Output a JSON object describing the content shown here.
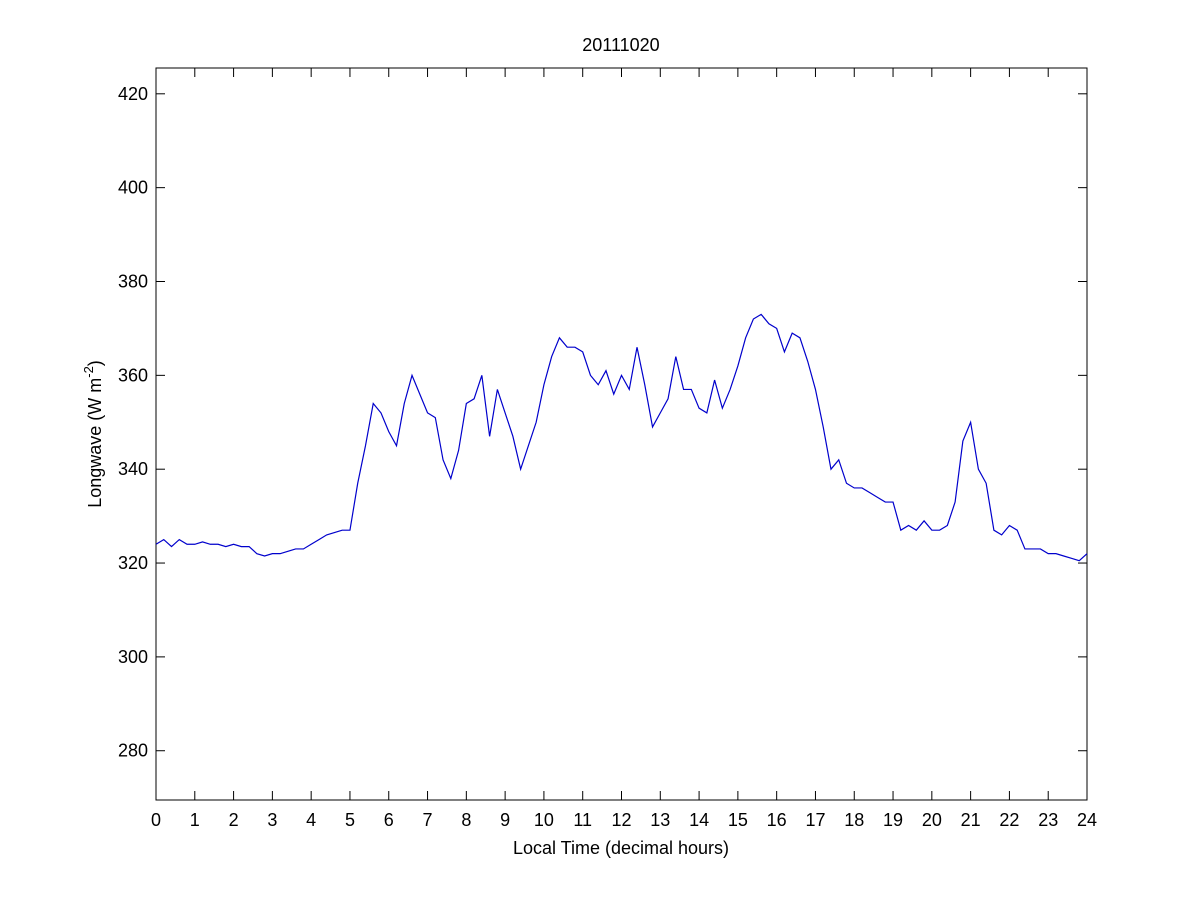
{
  "chart_data": {
    "type": "line",
    "title": "20111020",
    "xlabel": "Local Time (decimal hours)",
    "ylabel": {
      "text": "Longwave (W m",
      "sup": "-2",
      "end": ")"
    },
    "x": [
      0,
      0.2,
      0.4,
      0.6,
      0.8,
      1,
      1.2,
      1.4,
      1.6,
      1.8,
      2,
      2.2,
      2.4,
      2.6,
      2.8,
      3,
      3.2,
      3.4,
      3.6,
      3.8,
      4,
      4.2,
      4.4,
      4.6,
      4.8,
      5,
      5.2,
      5.4,
      5.6,
      5.8,
      6,
      6.2,
      6.4,
      6.6,
      6.8,
      7,
      7.2,
      7.4,
      7.6,
      7.8,
      8,
      8.2,
      8.4,
      8.6,
      8.8,
      9,
      9.2,
      9.4,
      9.6,
      9.8,
      10,
      10.2,
      10.4,
      10.6,
      10.8,
      11,
      11.2,
      11.4,
      11.6,
      11.8,
      12,
      12.2,
      12.4,
      12.6,
      12.8,
      13,
      13.2,
      13.4,
      13.6,
      13.8,
      14,
      14.2,
      14.4,
      14.6,
      14.8,
      15,
      15.2,
      15.4,
      15.6,
      15.8,
      16,
      16.2,
      16.4,
      16.6,
      16.8,
      17,
      17.2,
      17.4,
      17.6,
      17.8,
      18,
      18.2,
      18.4,
      18.6,
      18.8,
      19,
      19.2,
      19.4,
      19.6,
      19.8,
      20,
      20.2,
      20.4,
      20.6,
      20.8,
      21,
      21.2,
      21.4,
      21.6,
      21.8,
      22,
      22.2,
      22.4,
      22.6,
      22.8,
      23,
      23.2,
      23.4,
      23.6,
      23.8,
      24
    ],
    "series": [
      {
        "name": "Longwave",
        "color": "#0000cc",
        "values": [
          324,
          325,
          323.5,
          325,
          324,
          324,
          324.5,
          324,
          324,
          323.5,
          324,
          323.5,
          323.5,
          322,
          321.5,
          322,
          322,
          322.5,
          323,
          323,
          324,
          325,
          326,
          326.5,
          327,
          327,
          337,
          345,
          354,
          352,
          348,
          345,
          354,
          360,
          356,
          352,
          351,
          342,
          338,
          344,
          354,
          355,
          360,
          347,
          357,
          352,
          347,
          340,
          345,
          350,
          358,
          364,
          368,
          366,
          366,
          365,
          360,
          358,
          361,
          356,
          360,
          357,
          366,
          358,
          349,
          352,
          355,
          364,
          357,
          357,
          353,
          352,
          359,
          353,
          357,
          362,
          368,
          372,
          373,
          371,
          370,
          365,
          369,
          368,
          363,
          357,
          349,
          340,
          342,
          337,
          336,
          336,
          335,
          334,
          333,
          333,
          327,
          328,
          327,
          329,
          327,
          327,
          328,
          333,
          346,
          350,
          340,
          337,
          327,
          326,
          328,
          327,
          323,
          323,
          323,
          322,
          322,
          321.5,
          321,
          320.5,
          322
        ]
      }
    ],
    "xlim": [
      0,
      24
    ],
    "xticks": [
      0,
      1,
      2,
      3,
      4,
      5,
      6,
      7,
      8,
      9,
      10,
      11,
      12,
      13,
      14,
      15,
      16,
      17,
      18,
      19,
      20,
      21,
      22,
      23,
      24
    ],
    "ylim": [
      269.5,
      425.5
    ],
    "yticks": [
      280,
      300,
      320,
      340,
      360,
      380,
      400,
      420
    ]
  }
}
